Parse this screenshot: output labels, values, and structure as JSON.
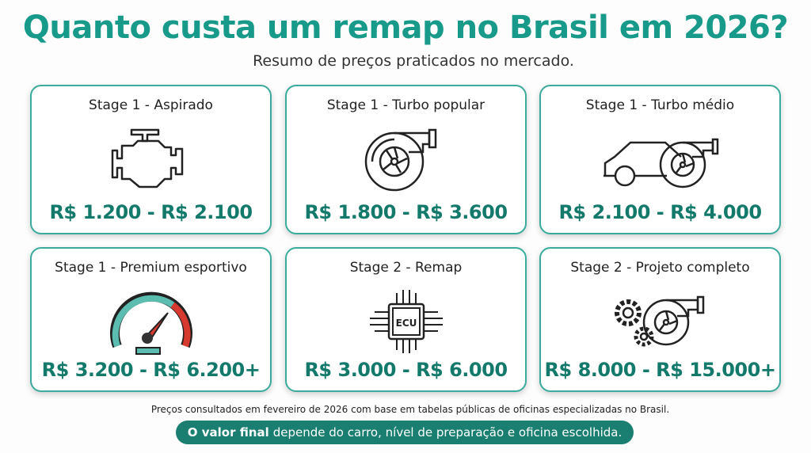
{
  "title": "Quanto custa um remap no Brasil em 2026?",
  "subtitle": "Resumo de preços praticados no mercado.",
  "colors": {
    "title": "#179a89",
    "price": "#137a6b",
    "border": "#3aab9c",
    "pill": "#1a7f71"
  },
  "cards": [
    {
      "title": "Stage 1 - Aspirado",
      "icon": "engine-icon",
      "price": "R$ 1.200 - R$ 2.100"
    },
    {
      "title": "Stage 1 - Turbo popular",
      "icon": "turbo-icon",
      "price": "R$ 1.800 - R$ 3.600"
    },
    {
      "title": "Stage 1 - Turbo médio",
      "icon": "car-turbo-icon",
      "price": "R$ 2.100 - R$ 4.000"
    },
    {
      "title": "Stage 1 - Premium esportivo",
      "icon": "speedometer-icon",
      "price": "R$ 3.200 - R$ 6.200+"
    },
    {
      "title": "Stage 2 - Remap",
      "icon": "ecu-chip-icon",
      "ecu_label": "ECU",
      "price": "R$ 3.000 - R$ 6.000"
    },
    {
      "title": "Stage 2 - Projeto completo",
      "icon": "gears-turbo-icon",
      "price": "R$ 8.000 - R$ 15.000+"
    }
  ],
  "footer": {
    "note": "Preços consultados em fevereiro de 2026 com base em tabelas públicas de oficinas especializadas no Brasil.",
    "highlight_bold": "O valor final",
    "highlight_rest": "depende do carro, nível de preparação e oficina escolhida."
  }
}
